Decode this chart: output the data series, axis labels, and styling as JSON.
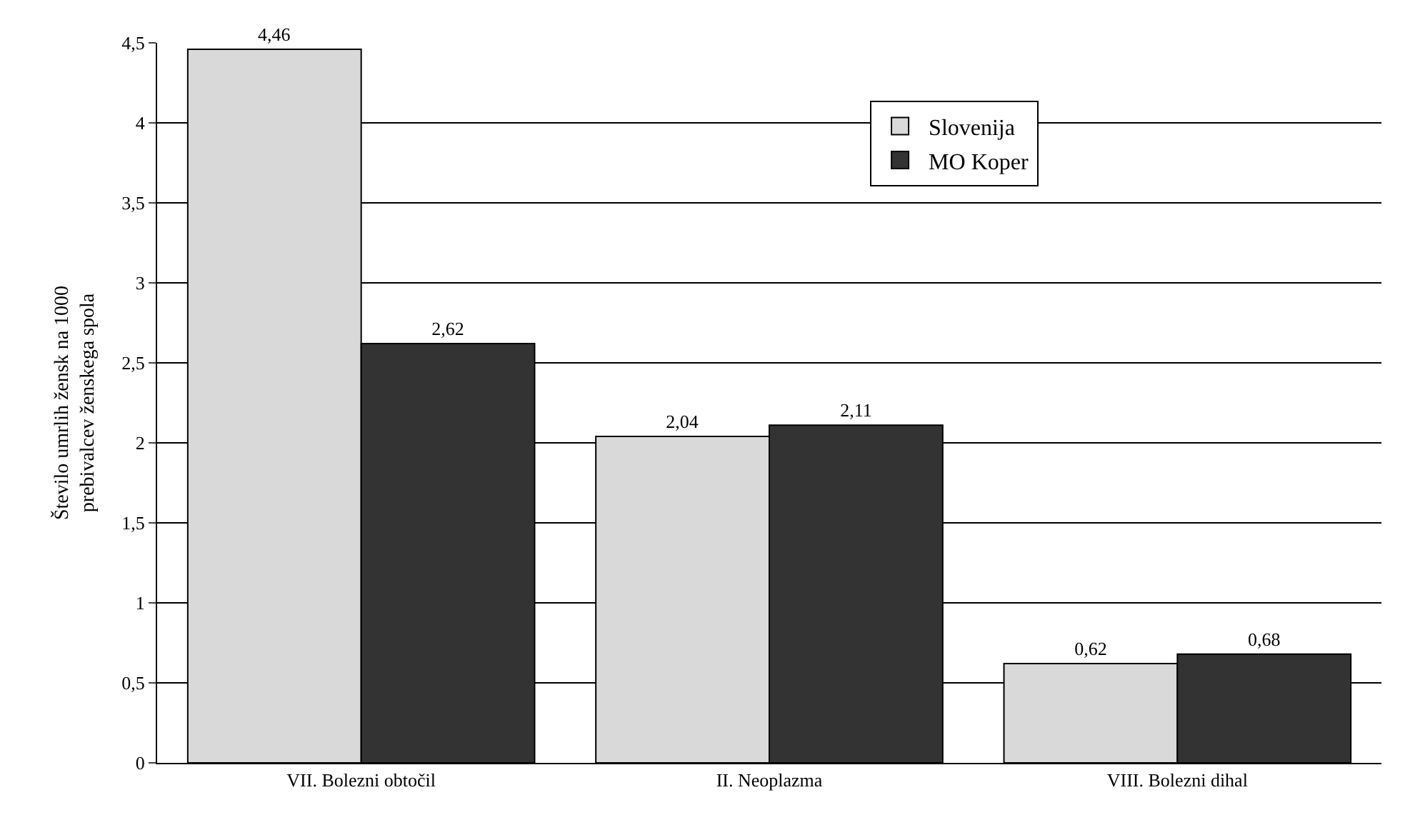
{
  "chart_data": {
    "type": "bar",
    "ylabel": "Število umrlih žensk na 1000\nprebivalcev ženskega spola",
    "categories": [
      "VII. Bolezni obtočil",
      "II. Neoplazma",
      "VIII. Bolezni dihal"
    ],
    "series": [
      {
        "name": "Slovenija",
        "color": "#d9d9d9",
        "values": [
          4.46,
          2.04,
          0.62
        ],
        "value_labels": [
          "4,46",
          "2,04",
          "0,62"
        ]
      },
      {
        "name": "MO Koper",
        "color": "#333333",
        "values": [
          2.62,
          2.11,
          0.68
        ],
        "value_labels": [
          "2,62",
          "2,11",
          "0,68"
        ]
      }
    ],
    "ylim": [
      0,
      4.5
    ],
    "yticks": [
      0,
      {
        "value": 0.5,
        "label": "0,5"
      },
      1,
      {
        "value": 1.5,
        "label": "1,5"
      },
      2,
      {
        "value": 2.5,
        "label": "2,5"
      },
      3,
      {
        "value": 3.5,
        "label": "3,5"
      },
      4,
      {
        "value": 4.5,
        "label": "4,5"
      }
    ],
    "grid": "y",
    "legend": "top right"
  }
}
